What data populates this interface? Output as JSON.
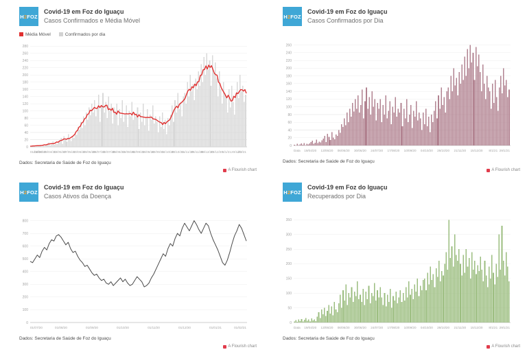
{
  "branding": {
    "logo_part1": "H",
    "logo_part2": "2",
    "logo_part3": "FOZ",
    "logo_bg": "#3fa7d6",
    "logo_accent": "#f7a738"
  },
  "footer": {
    "source": "Dados: Secretaria de Saúde de Foz do Iguaçu",
    "credit": "A Flourish chart",
    "credit_color": "#e13c4c"
  },
  "chart_data": [
    {
      "type": "bar+line",
      "title": "Covid-19 em Foz do Iguaçu",
      "subtitle": "Casos Confirmados e Média Móvel",
      "legend": [
        {
          "label": "Média Móvel",
          "color": "#e03131"
        },
        {
          "label": "Confirmados por dia",
          "color": "#d2d2d2"
        }
      ],
      "bar_color": "#d9d9d9",
      "line_color": "#e03131",
      "line_window": 7,
      "ylim": [
        0,
        290
      ],
      "yticks": [
        0,
        20,
        40,
        60,
        80,
        100,
        120,
        140,
        160,
        180,
        200,
        220,
        240,
        260,
        280
      ],
      "x_labels": [
        "01/04/20",
        "15/04/20",
        "29/04/20",
        "13/05/20",
        "27/05/20",
        "10/06/20",
        "24/06/20",
        "08/07/20",
        "22/07/20",
        "05/08/20",
        "19/08/20",
        "02/09/20",
        "16/09/20",
        "30/09/20",
        "14/10/20",
        "28/10/20",
        "11/11/20",
        "25/11/20",
        "09/12/20",
        "23/12/20",
        "6/1/21",
        "20/1/21",
        "2/2/21"
      ],
      "values": [
        2,
        0,
        4,
        1,
        3,
        5,
        2,
        6,
        1,
        4,
        3,
        5,
        9,
        12,
        4,
        7,
        15,
        6,
        10,
        8,
        13,
        18,
        25,
        9,
        30,
        22,
        14,
        35,
        20,
        16,
        28,
        25,
        40,
        33,
        55,
        48,
        70,
        52,
        85,
        60,
        95,
        75,
        110,
        88,
        120,
        95,
        130,
        85,
        105,
        145,
        70,
        115,
        150,
        95,
        125,
        80,
        140,
        100,
        120,
        65,
        110,
        95,
        120,
        60,
        105,
        80,
        130,
        70,
        90,
        115,
        55,
        100,
        85,
        125,
        75,
        95,
        85,
        110,
        50,
        95,
        70,
        120,
        60,
        80,
        105,
        45,
        90,
        75,
        115,
        65,
        85,
        70,
        40,
        85,
        55,
        95,
        50,
        75,
        35,
        80,
        60,
        90,
        115,
        70,
        130,
        95,
        150,
        105,
        125,
        85,
        140,
        150,
        120,
        180,
        140,
        200,
        155,
        175,
        130,
        190,
        160,
        210,
        170,
        230,
        180,
        250,
        200,
        260,
        215,
        240,
        170,
        255,
        205,
        235,
        190,
        140,
        210,
        160,
        120,
        180,
        150,
        140,
        95,
        160,
        110,
        170,
        125,
        90,
        150,
        180,
        135,
        200,
        155,
        170,
        125,
        145
      ]
    },
    {
      "type": "bar",
      "title": "Covid-19 em Foz do Iguaçu",
      "subtitle": "Casos Confirmados por Dia",
      "bar_color": "#b28391",
      "ylim": [
        0,
        270
      ],
      "yticks": [
        0,
        20,
        40,
        60,
        80,
        100,
        120,
        140,
        160,
        180,
        200,
        220,
        240,
        260
      ],
      "x_labels": [
        "Data",
        "19/04/20",
        "13/05/20",
        "06/06/20",
        "30/06/20",
        "24/07/20",
        "17/08/20",
        "10/09/20",
        "04/10/20",
        "28/10/20",
        "21/11/20",
        "15/12/20",
        "8/1/21",
        "29/1/21"
      ],
      "values": [
        2,
        0,
        4,
        1,
        3,
        5,
        2,
        6,
        1,
        4,
        3,
        5,
        9,
        12,
        4,
        7,
        15,
        6,
        10,
        8,
        13,
        18,
        25,
        9,
        30,
        22,
        14,
        35,
        20,
        16,
        28,
        25,
        40,
        33,
        55,
        48,
        70,
        52,
        85,
        60,
        95,
        75,
        110,
        88,
        120,
        95,
        130,
        85,
        105,
        145,
        70,
        115,
        150,
        95,
        125,
        80,
        140,
        100,
        120,
        65,
        110,
        95,
        120,
        60,
        105,
        80,
        130,
        70,
        90,
        115,
        55,
        100,
        85,
        125,
        75,
        95,
        85,
        110,
        50,
        95,
        70,
        120,
        60,
        80,
        105,
        45,
        90,
        75,
        115,
        65,
        85,
        70,
        40,
        85,
        55,
        95,
        50,
        75,
        35,
        80,
        60,
        90,
        115,
        70,
        130,
        95,
        150,
        105,
        125,
        85,
        140,
        150,
        120,
        180,
        140,
        200,
        155,
        175,
        130,
        190,
        160,
        210,
        170,
        230,
        180,
        250,
        200,
        260,
        215,
        240,
        170,
        255,
        205,
        235,
        190,
        140,
        210,
        160,
        120,
        180,
        150,
        140,
        95,
        160,
        110,
        170,
        125,
        90,
        150,
        180,
        135,
        200,
        155,
        170,
        125,
        145
      ]
    },
    {
      "type": "line",
      "title": "Covid-19 em Foz do Iguaçu",
      "subtitle": "Casos Ativos da Doença",
      "line_color": "#4a4a4a",
      "ylim": [
        0,
        830
      ],
      "yticks": [
        0,
        100,
        200,
        300,
        400,
        500,
        600,
        700,
        800
      ],
      "x_labels": [
        "01/07/20",
        "01/08/20",
        "01/09/20",
        "01/10/20",
        "01/11/20",
        "01/12/20",
        "01/01/21",
        "01/02/21"
      ],
      "values": [
        480,
        470,
        500,
        530,
        510,
        560,
        590,
        570,
        620,
        650,
        640,
        680,
        690,
        670,
        640,
        610,
        630,
        580,
        550,
        560,
        520,
        490,
        470,
        440,
        450,
        420,
        390,
        370,
        380,
        350,
        330,
        340,
        310,
        300,
        320,
        290,
        310,
        330,
        350,
        320,
        340,
        310,
        290,
        300,
        330,
        360,
        340,
        320,
        280,
        290,
        310,
        350,
        380,
        420,
        460,
        500,
        540,
        520,
        580,
        620,
        600,
        660,
        700,
        680,
        740,
        780,
        750,
        720,
        760,
        800,
        770,
        730,
        700,
        740,
        780,
        760,
        700,
        650,
        610,
        570,
        520,
        470,
        450,
        490,
        550,
        620,
        680,
        720,
        770,
        740,
        690,
        640
      ]
    },
    {
      "type": "bar",
      "title": "Covid-19 em Foz do Iguaçu",
      "subtitle": "Recuperados por Dia",
      "bar_color": "#9bbd7f",
      "ylim": [
        0,
        360
      ],
      "yticks": [
        0,
        50,
        100,
        150,
        200,
        250,
        300,
        350
      ],
      "x_labels": [
        "Data",
        "19/04/20",
        "13/05/20",
        "06/06/20",
        "30/06/20",
        "24/07/20",
        "17/08/20",
        "10/09/20",
        "04/10/20",
        "28/10/20",
        "21/11/20",
        "15/12/20",
        "8/1/21",
        "29/1/21"
      ],
      "values": [
        3,
        8,
        2,
        10,
        5,
        12,
        4,
        9,
        15,
        6,
        11,
        3,
        14,
        7,
        10,
        5,
        20,
        35,
        15,
        45,
        28,
        50,
        22,
        40,
        60,
        30,
        55,
        25,
        70,
        45,
        35,
        65,
        95,
        50,
        110,
        75,
        130,
        60,
        100,
        85,
        120,
        70,
        105,
        90,
        140,
        80,
        95,
        70,
        115,
        60,
        105,
        80,
        125,
        65,
        100,
        90,
        135,
        75,
        110,
        85,
        120,
        85,
        60,
        100,
        55,
        95,
        70,
        115,
        50,
        90,
        75,
        105,
        65,
        85,
        110,
        70,
        100,
        75,
        120,
        85,
        140,
        95,
        115,
        80,
        130,
        105,
        150,
        90,
        125,
        110,
        145,
        150,
        110,
        170,
        130,
        190,
        145,
        165,
        120,
        185,
        155,
        210,
        140,
        175,
        160,
        200,
        240,
        180,
        350,
        220,
        260,
        190,
        300,
        230,
        210,
        250,
        200,
        160,
        230,
        170,
        250,
        190,
        220,
        150,
        240,
        180,
        210,
        165,
        195,
        175,
        225,
        180,
        140,
        210,
        160,
        120,
        190,
        150,
        230,
        170,
        130,
        200,
        155,
        300,
        180,
        330,
        210,
        160,
        240,
        190,
        140
      ]
    }
  ]
}
